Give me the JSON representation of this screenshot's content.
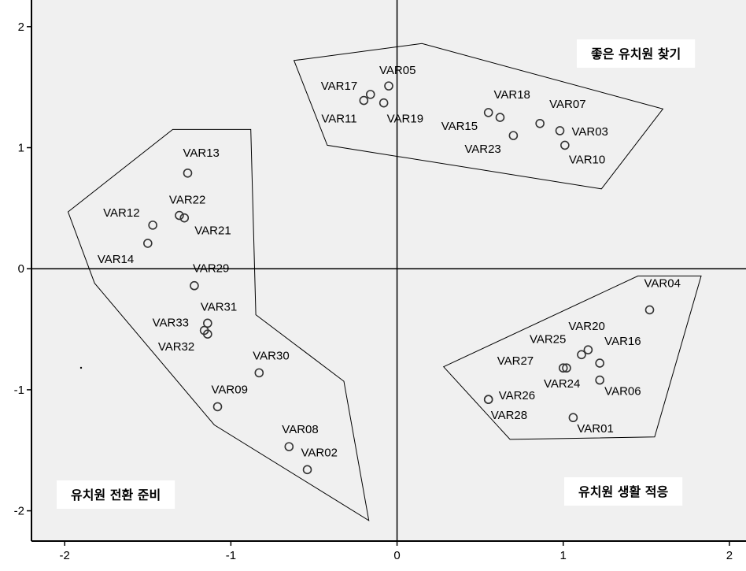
{
  "chart_data": {
    "type": "scatter",
    "title": "",
    "xlabel": "",
    "ylabel": "",
    "xlim": [
      -2.2,
      2.1
    ],
    "ylim": [
      -2.25,
      2.22
    ],
    "grid": false,
    "reference_lines": {
      "x": 0,
      "y": 0
    },
    "x_ticks": [
      -2,
      -1,
      0,
      1,
      2
    ],
    "y_ticks": [
      2,
      1,
      0,
      -1,
      -2
    ],
    "x_tick_labels": [
      "-2",
      "-1",
      "0",
      "1",
      "2"
    ],
    "y_tick_labels": [
      "2",
      "1",
      "0",
      "-1",
      "-2"
    ],
    "colors": {
      "background": "#f0f0f0",
      "marker": "#333333",
      "frame": "#000000"
    },
    "points": [
      {
        "label": "VAR17",
        "x": -0.16,
        "y": 1.44
      },
      {
        "label": "VAR11",
        "x": -0.2,
        "y": 1.39
      },
      {
        "label": "VAR05",
        "x": -0.05,
        "y": 1.51
      },
      {
        "label": "VAR19",
        "x": -0.08,
        "y": 1.37
      },
      {
        "label": "VAR15",
        "x": 0.55,
        "y": 1.29
      },
      {
        "label": "VAR18",
        "x": 0.62,
        "y": 1.25
      },
      {
        "label": "VAR23",
        "x": 0.7,
        "y": 1.1
      },
      {
        "label": "VAR07",
        "x": 0.86,
        "y": 1.2
      },
      {
        "label": "VAR03",
        "x": 0.98,
        "y": 1.14
      },
      {
        "label": "VAR10",
        "x": 1.01,
        "y": 1.02
      },
      {
        "label": "VAR13",
        "x": -1.26,
        "y": 0.79
      },
      {
        "label": "VAR22",
        "x": -1.31,
        "y": 0.44
      },
      {
        "label": "VAR21",
        "x": -1.28,
        "y": 0.42
      },
      {
        "label": "VAR12",
        "x": -1.47,
        "y": 0.36
      },
      {
        "label": "VAR14",
        "x": -1.5,
        "y": 0.21
      },
      {
        "label": "VAR29",
        "x": -1.22,
        "y": -0.14
      },
      {
        "label": "VAR31",
        "x": -1.14,
        "y": -0.45
      },
      {
        "label": "VAR33",
        "x": -1.16,
        "y": -0.51
      },
      {
        "label": "VAR32",
        "x": -1.14,
        "y": -0.54
      },
      {
        "label": "VAR30",
        "x": -0.83,
        "y": -0.86
      },
      {
        "label": "VAR09",
        "x": -1.08,
        "y": -1.14
      },
      {
        "label": "VAR08",
        "x": -0.65,
        "y": -1.47
      },
      {
        "label": "VAR02",
        "x": -0.54,
        "y": -1.66
      },
      {
        "label": "VAR04",
        "x": 1.52,
        "y": -0.34
      },
      {
        "label": "VAR20",
        "x": 1.15,
        "y": -0.67
      },
      {
        "label": "VAR25",
        "x": 1.11,
        "y": -0.71
      },
      {
        "label": "VAR16",
        "x": 1.22,
        "y": -0.78
      },
      {
        "label": "VAR27",
        "x": 1.0,
        "y": -0.82
      },
      {
        "label": "VAR24",
        "x": 1.02,
        "y": -0.82
      },
      {
        "label": "VAR06",
        "x": 1.22,
        "y": -0.92
      },
      {
        "label": "VAR26",
        "x": 0.55,
        "y": -1.08
      },
      {
        "label": "VAR28",
        "x": 0.55,
        "y": -1.08
      },
      {
        "label": "VAR01",
        "x": 1.06,
        "y": -1.23
      }
    ],
    "groups": [
      {
        "name": "좋은 유치원 찾기",
        "polygon": [
          [
            -0.62,
            1.72
          ],
          [
            0.15,
            1.86
          ],
          [
            1.6,
            1.32
          ],
          [
            1.23,
            0.66
          ],
          [
            -0.42,
            1.02
          ]
        ]
      },
      {
        "name": "유치원 전환 준비",
        "polygon": [
          [
            -1.98,
            0.47
          ],
          [
            -1.35,
            1.15
          ],
          [
            -0.88,
            1.15
          ],
          [
            -0.85,
            -0.38
          ],
          [
            -0.32,
            -0.93
          ],
          [
            -0.17,
            -2.08
          ],
          [
            -1.1,
            -1.29
          ],
          [
            -1.82,
            -0.12
          ]
        ]
      },
      {
        "name": "유치원 생활 적응",
        "polygon": [
          [
            0.28,
            -0.81
          ],
          [
            1.45,
            -0.06
          ],
          [
            1.83,
            -0.06
          ],
          [
            1.55,
            -1.39
          ],
          [
            0.68,
            -1.41
          ]
        ]
      }
    ]
  }
}
